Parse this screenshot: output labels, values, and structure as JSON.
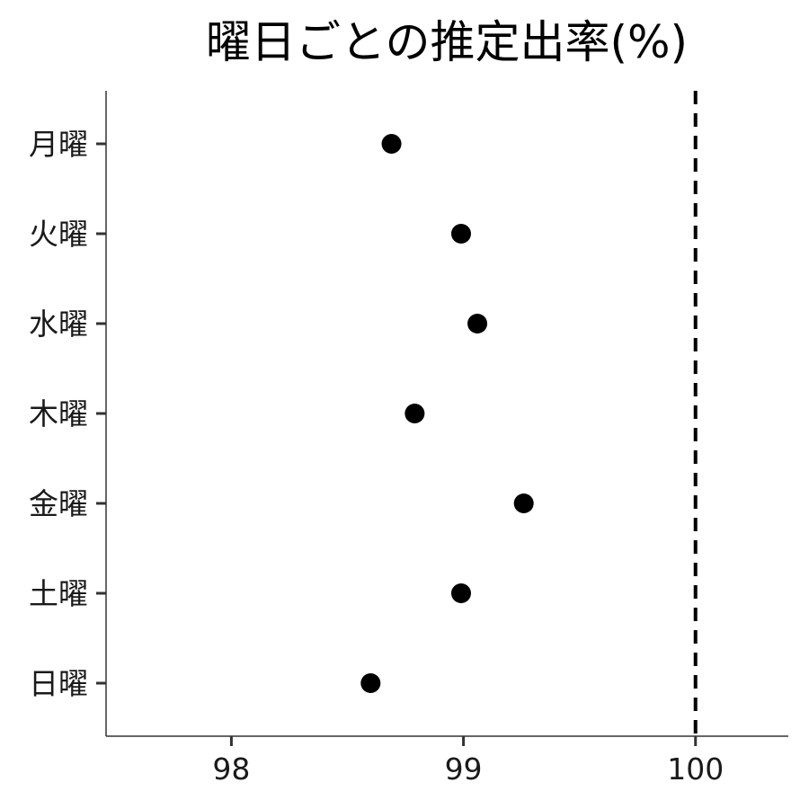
{
  "chart_data": {
    "type": "scatter",
    "title": "曜日ごとの推定出率(%)",
    "xlabel": "",
    "ylabel": "",
    "categories": [
      "月曜",
      "火曜",
      "水曜",
      "木曜",
      "金曜",
      "土曜",
      "日曜"
    ],
    "values": [
      98.69,
      98.99,
      99.06,
      98.79,
      99.26,
      98.99,
      98.6
    ],
    "xlim": [
      97.46,
      100.4
    ],
    "xticks": [
      98,
      99,
      100
    ],
    "xtick_labels": [
      "98",
      "99",
      "100"
    ],
    "reference_line": {
      "x": 100,
      "style": "dashed",
      "color": "#000000"
    },
    "point_color": "#000000",
    "grid": false,
    "legend": "none"
  }
}
